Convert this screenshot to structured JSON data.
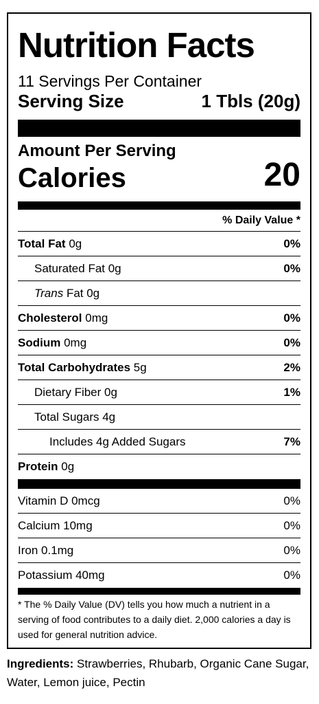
{
  "title": "Nutrition Facts",
  "servings_per_container": "11 Servings Per Container",
  "serving_size_label": "Serving Size",
  "serving_size_value": "1 Tbls (20g)",
  "amount_per_serving": "Amount Per Serving",
  "calories_label": "Calories",
  "calories_value": "20",
  "dv_header": "% Daily Value *",
  "nutrients": {
    "total_fat": {
      "name": "Total Fat",
      "amount": "0g",
      "dv": "0%"
    },
    "saturated_fat": {
      "name": "Saturated Fat 0g",
      "dv": "0%"
    },
    "trans_fat": {
      "name_italic": "Trans",
      "name_rest": "Fat 0g"
    },
    "cholesterol": {
      "name": "Cholesterol",
      "amount": "0mg",
      "dv": "0%"
    },
    "sodium": {
      "name": "Sodium",
      "amount": "0mg",
      "dv": "0%"
    },
    "total_carbs": {
      "name": "Total Carbohydrates",
      "amount": "5g",
      "dv": "2%"
    },
    "dietary_fiber": {
      "name": "Dietary Fiber 0g",
      "dv": "1%"
    },
    "total_sugars": {
      "name": "Total Sugars 4g"
    },
    "added_sugars": {
      "name": "Includes 4g Added Sugars",
      "dv": "7%"
    },
    "protein": {
      "name": "Protein",
      "amount": "0g"
    }
  },
  "vitamins": [
    {
      "name": "Vitamin D 0mcg",
      "dv": "0%"
    },
    {
      "name": "Calcium 10mg",
      "dv": "0%"
    },
    {
      "name": "Iron 0.1mg",
      "dv": "0%"
    },
    {
      "name": "Potassium 40mg",
      "dv": "0%"
    }
  ],
  "footnote": "* The % Daily Value (DV) tells you how much a nutrient in a serving of food contributes to a daily diet. 2,000 calories a day is used for general nutrition advice.",
  "ingredients_label": "Ingredients:",
  "ingredients_text": "Strawberries, Rhubarb, Organic Cane Sugar, Water, Lemon juice, Pectin"
}
